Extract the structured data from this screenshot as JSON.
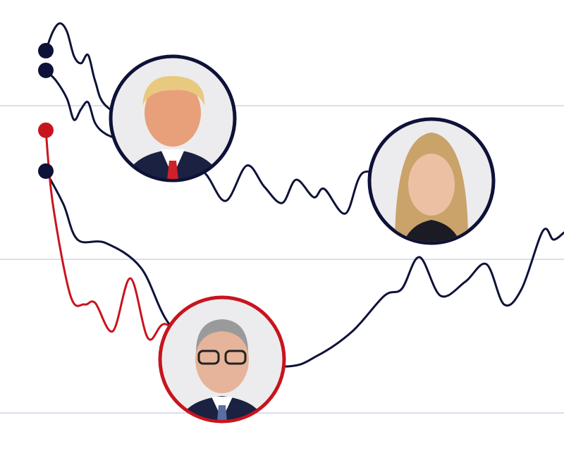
{
  "chart_data": {
    "type": "line",
    "xlim": [
      0,
      800
    ],
    "ylim": [
      -12.4,
      134.4
    ],
    "yticks": [
      0,
      50,
      100
    ],
    "grid": true,
    "series": [
      {
        "color": "#0e1238",
        "x": [
          65,
          75,
          85,
          95,
          105,
          115,
          125,
          135,
          150,
          200,
          250,
          290,
          320,
          350,
          375,
          400,
          420,
          445,
          460,
          490,
          515,
          560
        ],
        "values": [
          117.9,
          124.1,
          126.8,
          124.1,
          116.1,
          113.8,
          116.5,
          108.0,
          100.0,
          93.1,
          83.9,
          78.2,
          69.0,
          80.5,
          73.6,
          68.3,
          75.9,
          70.2,
          72.9,
          64.9,
          78.2,
          74.8
        ]
      },
      {
        "color": "#0e1238",
        "x": [
          65,
          80,
          95,
          105,
          115,
          125,
          135,
          150,
          175
        ],
        "values": [
          111.5,
          108.0,
          102.3,
          95.4,
          98.9,
          101.1,
          94.3,
          90.8,
          88.5
        ]
      },
      {
        "color": "#0e1238",
        "x": [
          65,
          90,
          110,
          150,
          200,
          240,
          300,
          405,
          450,
          500,
          545,
          570,
          595,
          625,
          660,
          690,
          715,
          740,
          770,
          785,
          800
        ],
        "values": [
          78.7,
          67.9,
          56.4,
          55.3,
          47.2,
          28.9,
          17.4,
          15.1,
          18.6,
          26.6,
          38.1,
          40.4,
          50.7,
          38.1,
          42.7,
          48.4,
          35.3,
          40.4,
          59.2,
          56.4,
          58.7
        ]
      },
      {
        "color": "#c8141e",
        "x": [
          65,
          75,
          100,
          120,
          135,
          160,
          185,
          210,
          235,
          280
        ],
        "values": [
          92.0,
          67.9,
          38.1,
          35.3,
          35.8,
          26.6,
          43.8,
          24.3,
          28.9,
          19.7
        ]
      }
    ]
  }
}
